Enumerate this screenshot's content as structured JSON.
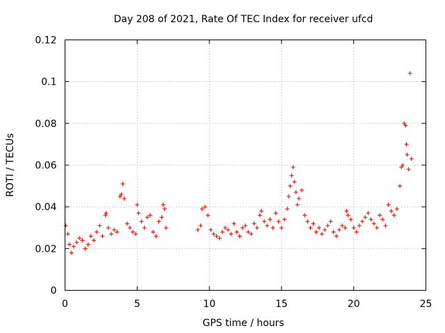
{
  "chart_data": {
    "type": "scatter",
    "title": "Day 208 of 2021, Rate Of TEC Index for receiver ufcd",
    "xlabel": "GPS time / hours",
    "ylabel": "ROTI / TECUs",
    "xlim": [
      0,
      25
    ],
    "ylim": [
      0,
      0.12
    ],
    "xticks": [
      0,
      5,
      10,
      15,
      20,
      25
    ],
    "xtick_labels": [
      "0",
      "5",
      "10",
      "15",
      "20",
      "25"
    ],
    "yticks": [
      0,
      0.02,
      0.04,
      0.06,
      0.08,
      0.1,
      0.12
    ],
    "ytick_labels": [
      "0",
      "0.02",
      "0.04",
      "0.06",
      "0.08",
      "0.1",
      "0.12"
    ],
    "grid": true,
    "marker": "plus",
    "color": "#ff0000",
    "series": [
      {
        "x": [
          0.05,
          0.2,
          0.3,
          0.45,
          0.6,
          0.8,
          1.0,
          1.2,
          1.4,
          1.6,
          1.8,
          2.0,
          2.2,
          2.4,
          2.6,
          2.8,
          2.85,
          3.0,
          3.2,
          3.4,
          3.6,
          3.8,
          3.9,
          4.0,
          4.1,
          4.3,
          4.5,
          4.7,
          4.9,
          5.0,
          5.1,
          5.3,
          5.5,
          5.7,
          5.9,
          6.1,
          6.3,
          6.5,
          6.7,
          6.8,
          6.9,
          7.0,
          9.2,
          9.4,
          9.5,
          9.7,
          9.9,
          10.1,
          10.3,
          10.5,
          10.7,
          10.9,
          11.1,
          11.3,
          11.5,
          11.7,
          11.9,
          12.1,
          12.3,
          12.5,
          12.7,
          12.9,
          13.1,
          13.3,
          13.5,
          13.6,
          13.8,
          14.0,
          14.2,
          14.4,
          14.6,
          14.8,
          15.0,
          15.2,
          15.4,
          15.5,
          15.6,
          15.7,
          15.8,
          15.9,
          16.0,
          16.1,
          16.2,
          16.4,
          16.6,
          16.8,
          17.0,
          17.2,
          17.4,
          17.6,
          17.8,
          18.0,
          18.2,
          18.4,
          18.6,
          18.8,
          19.0,
          19.2,
          19.4,
          19.5,
          19.6,
          19.8,
          20.0,
          20.2,
          20.4,
          20.6,
          20.8,
          21.0,
          21.2,
          21.4,
          21.6,
          21.8,
          22.0,
          22.2,
          22.4,
          22.6,
          22.8,
          23.0,
          23.2,
          23.3,
          23.4,
          23.5,
          23.6,
          23.65,
          23.7,
          23.8,
          23.9,
          24.0
        ],
        "y": [
          0.031,
          0.027,
          0.022,
          0.018,
          0.021,
          0.023,
          0.025,
          0.024,
          0.02,
          0.022,
          0.026,
          0.024,
          0.028,
          0.031,
          0.026,
          0.036,
          0.037,
          0.03,
          0.027,
          0.029,
          0.028,
          0.045,
          0.046,
          0.051,
          0.044,
          0.032,
          0.03,
          0.028,
          0.027,
          0.041,
          0.037,
          0.033,
          0.03,
          0.035,
          0.036,
          0.028,
          0.026,
          0.033,
          0.035,
          0.041,
          0.039,
          0.03,
          0.029,
          0.031,
          0.039,
          0.04,
          0.036,
          0.029,
          0.027,
          0.026,
          0.025,
          0.028,
          0.03,
          0.029,
          0.027,
          0.032,
          0.028,
          0.026,
          0.03,
          0.031,
          0.028,
          0.027,
          0.032,
          0.03,
          0.036,
          0.038,
          0.033,
          0.031,
          0.034,
          0.03,
          0.037,
          0.033,
          0.03,
          0.034,
          0.039,
          0.045,
          0.05,
          0.055,
          0.059,
          0.052,
          0.047,
          0.041,
          0.044,
          0.048,
          0.036,
          0.033,
          0.03,
          0.032,
          0.028,
          0.03,
          0.027,
          0.029,
          0.031,
          0.033,
          0.028,
          0.026,
          0.029,
          0.031,
          0.03,
          0.038,
          0.036,
          0.034,
          0.03,
          0.028,
          0.031,
          0.033,
          0.035,
          0.037,
          0.034,
          0.032,
          0.03,
          0.036,
          0.034,
          0.031,
          0.041,
          0.038,
          0.036,
          0.039,
          0.05,
          0.059,
          0.06,
          0.08,
          0.079,
          0.07,
          0.065,
          0.058,
          0.104,
          0.063
        ]
      }
    ]
  }
}
